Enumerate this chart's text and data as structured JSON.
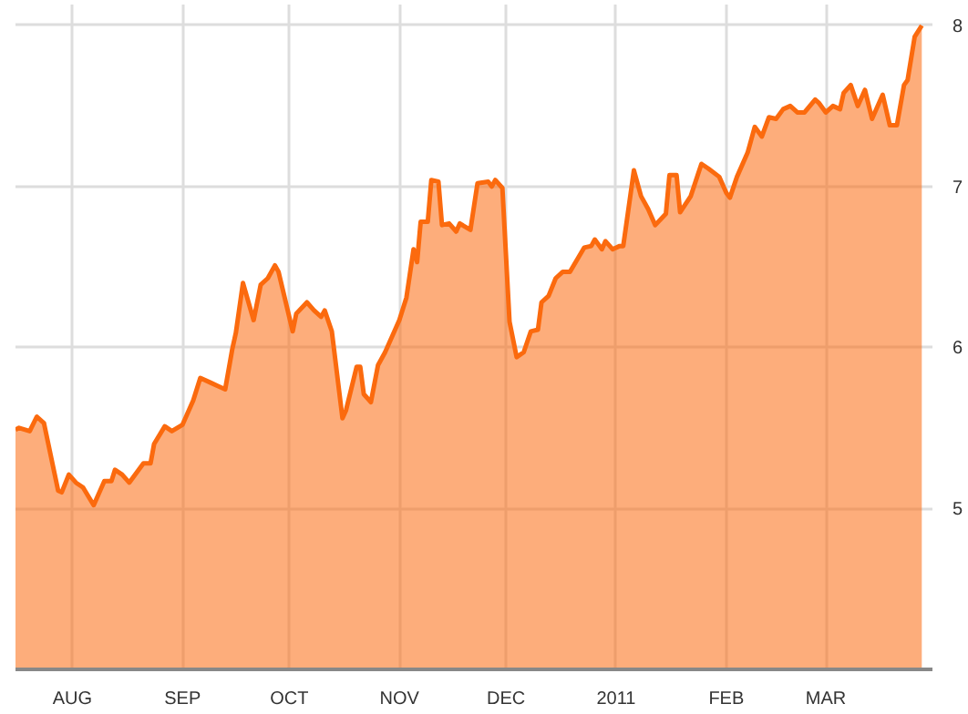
{
  "chart_data": {
    "type": "area",
    "color": "#fb6a0e",
    "grid": true,
    "marker": "none",
    "line_style": "solid",
    "xlim": [
      "2010-07-16",
      "2011-03-31"
    ],
    "ylim": [
      4.0,
      8.13
    ],
    "xticks": [
      {
        "value": "2010-08-01",
        "label": "AUG"
      },
      {
        "value": "2010-09-01",
        "label": "SEP"
      },
      {
        "value": "2010-10-01",
        "label": "OCT"
      },
      {
        "value": "2010-11-01",
        "label": "NOV"
      },
      {
        "value": "2010-12-01",
        "label": "DEC"
      },
      {
        "value": "2011-01-01",
        "label": "2011"
      },
      {
        "value": "2011-02-01",
        "label": "FEB"
      },
      {
        "value": "2011-03-01",
        "label": "MAR"
      }
    ],
    "yticks": [
      5,
      6,
      7,
      8
    ],
    "x": [
      "2010-07-16",
      "2010-07-17",
      "2010-07-20",
      "2010-07-22",
      "2010-07-24",
      "2010-07-28",
      "2010-07-29",
      "2010-07-31",
      "2010-08-02",
      "2010-08-04",
      "2010-08-07",
      "2010-08-10",
      "2010-08-12",
      "2010-08-13",
      "2010-08-15",
      "2010-08-17",
      "2010-08-21",
      "2010-08-23",
      "2010-08-24",
      "2010-08-27",
      "2010-08-29",
      "2010-09-01",
      "2010-09-04",
      "2010-09-06",
      "2010-09-09",
      "2010-09-11",
      "2010-09-13",
      "2010-09-15",
      "2010-09-16",
      "2010-09-18",
      "2010-09-21",
      "2010-09-23",
      "2010-09-25",
      "2010-09-27",
      "2010-09-28",
      "2010-10-02",
      "2010-10-03",
      "2010-10-06",
      "2010-10-08",
      "2010-10-10",
      "2010-10-11",
      "2010-10-13",
      "2010-10-16",
      "2010-10-17",
      "2010-10-20",
      "2010-10-21",
      "2010-10-22",
      "2010-10-24",
      "2010-10-26",
      "2010-10-28",
      "2010-11-01",
      "2010-11-03",
      "2010-11-05",
      "2010-11-06",
      "2010-11-07",
      "2010-11-09",
      "2010-11-10",
      "2010-11-12",
      "2010-11-13",
      "2010-11-15",
      "2010-11-17",
      "2010-11-18",
      "2010-11-21",
      "2010-11-23",
      "2010-11-26",
      "2010-11-27",
      "2010-11-28",
      "2010-11-30",
      "2010-12-02",
      "2010-12-04",
      "2010-12-06",
      "2010-12-08",
      "2010-12-10",
      "2010-12-11",
      "2010-12-13",
      "2010-12-15",
      "2010-12-17",
      "2010-12-19",
      "2010-12-23",
      "2010-12-25",
      "2010-12-26",
      "2010-12-28",
      "2010-12-29",
      "2010-12-31",
      "2011-01-02",
      "2011-01-03",
      "2011-01-06",
      "2011-01-08",
      "2011-01-10",
      "2011-01-12",
      "2011-01-15",
      "2011-01-16",
      "2011-01-18",
      "2011-01-19",
      "2011-01-22",
      "2011-01-25",
      "2011-01-27",
      "2011-01-30",
      "2011-02-01",
      "2011-02-02",
      "2011-02-04",
      "2011-02-07",
      "2011-02-09",
      "2011-02-11",
      "2011-02-13",
      "2011-02-15",
      "2011-02-17",
      "2011-02-19",
      "2011-02-21",
      "2011-02-23",
      "2011-02-26",
      "2011-02-27",
      "2011-03-01",
      "2011-03-03",
      "2011-03-05",
      "2011-03-06",
      "2011-03-08",
      "2011-03-10",
      "2011-03-12",
      "2011-03-14",
      "2011-03-17",
      "2011-03-19",
      "2011-03-21",
      "2011-03-23",
      "2011-03-24",
      "2011-03-26",
      "2011-03-28"
    ],
    "values": [
      5.49,
      5.5,
      5.48,
      5.57,
      5.53,
      5.11,
      5.1,
      5.21,
      5.16,
      5.13,
      5.02,
      5.17,
      5.17,
      5.24,
      5.21,
      5.16,
      5.28,
      5.28,
      5.4,
      5.51,
      5.48,
      5.52,
      5.67,
      5.81,
      5.78,
      5.76,
      5.74,
      5.99,
      6.09,
      6.4,
      6.17,
      6.39,
      6.43,
      6.51,
      6.47,
      6.1,
      6.21,
      6.28,
      6.23,
      6.19,
      6.23,
      6.1,
      5.56,
      5.61,
      5.88,
      5.88,
      5.71,
      5.66,
      5.89,
      5.97,
      6.17,
      6.31,
      6.61,
      6.53,
      6.78,
      6.78,
      7.04,
      7.03,
      6.76,
      6.77,
      6.72,
      6.77,
      6.73,
      7.02,
      7.03,
      7.0,
      7.04,
      6.99,
      6.16,
      5.94,
      5.97,
      6.1,
      6.11,
      6.28,
      6.32,
      6.43,
      6.47,
      6.47,
      6.62,
      6.63,
      6.67,
      6.61,
      6.66,
      6.61,
      6.63,
      6.63,
      7.1,
      6.94,
      6.86,
      6.76,
      6.83,
      7.07,
      7.07,
      6.84,
      6.94,
      7.14,
      7.11,
      7.06,
      6.96,
      6.93,
      7.06,
      7.21,
      7.37,
      7.31,
      7.43,
      7.42,
      7.48,
      7.5,
      7.46,
      7.46,
      7.54,
      7.52,
      7.46,
      7.5,
      7.48,
      7.58,
      7.63,
      7.5,
      7.6,
      7.42,
      7.57,
      7.38,
      7.38,
      7.63,
      7.66,
      7.93,
      8.0
    ]
  }
}
